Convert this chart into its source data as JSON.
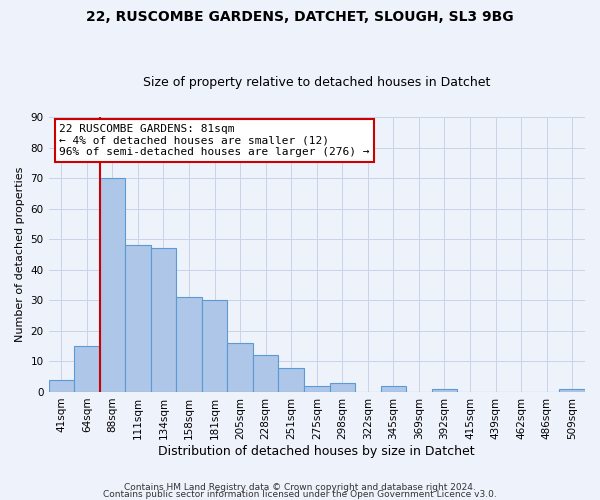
{
  "title1": "22, RUSCOMBE GARDENS, DATCHET, SLOUGH, SL3 9BG",
  "title2": "Size of property relative to detached houses in Datchet",
  "xlabel": "Distribution of detached houses by size in Datchet",
  "ylabel": "Number of detached properties",
  "footer1": "Contains HM Land Registry data © Crown copyright and database right 2024.",
  "footer2": "Contains public sector information licensed under the Open Government Licence v3.0.",
  "bin_labels": [
    "41sqm",
    "64sqm",
    "88sqm",
    "111sqm",
    "134sqm",
    "158sqm",
    "181sqm",
    "205sqm",
    "228sqm",
    "251sqm",
    "275sqm",
    "298sqm",
    "322sqm",
    "345sqm",
    "369sqm",
    "392sqm",
    "415sqm",
    "439sqm",
    "462sqm",
    "486sqm",
    "509sqm"
  ],
  "bar_values": [
    4,
    15,
    70,
    48,
    47,
    31,
    30,
    16,
    12,
    8,
    2,
    3,
    0,
    2,
    0,
    1,
    0,
    0,
    0,
    0,
    1
  ],
  "bar_color": "#aec6e8",
  "bar_edge_color": "#5b9bd5",
  "annotation_title": "22 RUSCOMBE GARDENS: 81sqm",
  "annotation_line1": "← 4% of detached houses are smaller (12)",
  "annotation_line2": "96% of semi-detached houses are larger (276) →",
  "annotation_box_facecolor": "#ffffff",
  "annotation_box_edgecolor": "#cc0000",
  "vline_color": "#cc0000",
  "ylim": [
    0,
    90
  ],
  "yticks": [
    0,
    10,
    20,
    30,
    40,
    50,
    60,
    70,
    80,
    90
  ],
  "background_color": "#eef2fb",
  "grid_color": "#c8d4e8",
  "title1_fontsize": 10,
  "title2_fontsize": 9,
  "annotation_fontsize": 8,
  "xlabel_fontsize": 9,
  "ylabel_fontsize": 8,
  "tick_fontsize": 7.5,
  "footer_fontsize": 6.5
}
